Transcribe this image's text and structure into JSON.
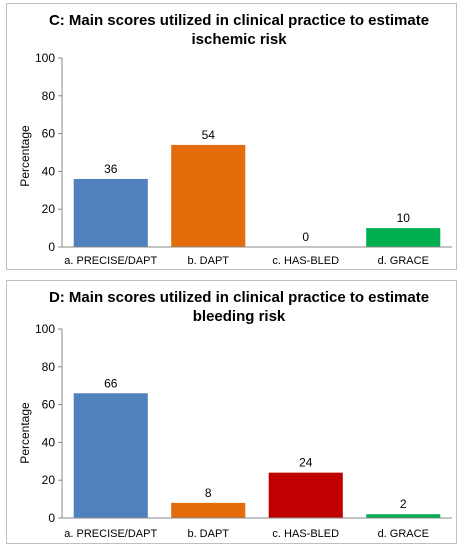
{
  "chart_data": [
    {
      "type": "bar",
      "title_line1": "C: Main scores utilized in clinical practice to estimate",
      "title_line2": "ischemic risk",
      "ylabel": "Percentage",
      "xlabel": "",
      "ylim": [
        0,
        100
      ],
      "yticks": [
        "0",
        "20",
        "40",
        "60",
        "80",
        "100"
      ],
      "categories": [
        "a. PRECISE/DAPT",
        "b. DAPT",
        "c. HAS-BLED",
        "d. GRACE"
      ],
      "values": [
        36,
        54,
        0,
        10
      ],
      "data_labels": [
        "36",
        "54",
        "0",
        "10"
      ],
      "colors": [
        "#4f81bd",
        "#e46c0a",
        "#c00000",
        "#00b050"
      ],
      "grid": false,
      "legend": "none"
    },
    {
      "type": "bar",
      "title_line1": "D: Main scores utilized in clinical practice to estimate",
      "title_line2": "bleeding risk",
      "ylabel": "Percentage",
      "xlabel": "",
      "ylim": [
        0,
        100
      ],
      "yticks": [
        "0",
        "20",
        "40",
        "60",
        "80",
        "100"
      ],
      "categories": [
        "a. PRECISE/DAPT",
        "b. DAPT",
        "c. HAS-BLED",
        "d. GRACE"
      ],
      "values": [
        66,
        8,
        24,
        2
      ],
      "data_labels": [
        "66",
        "8",
        "24",
        "2"
      ],
      "colors": [
        "#4f81bd",
        "#e46c0a",
        "#c00000",
        "#00b050"
      ],
      "grid": false,
      "legend": "none"
    }
  ]
}
